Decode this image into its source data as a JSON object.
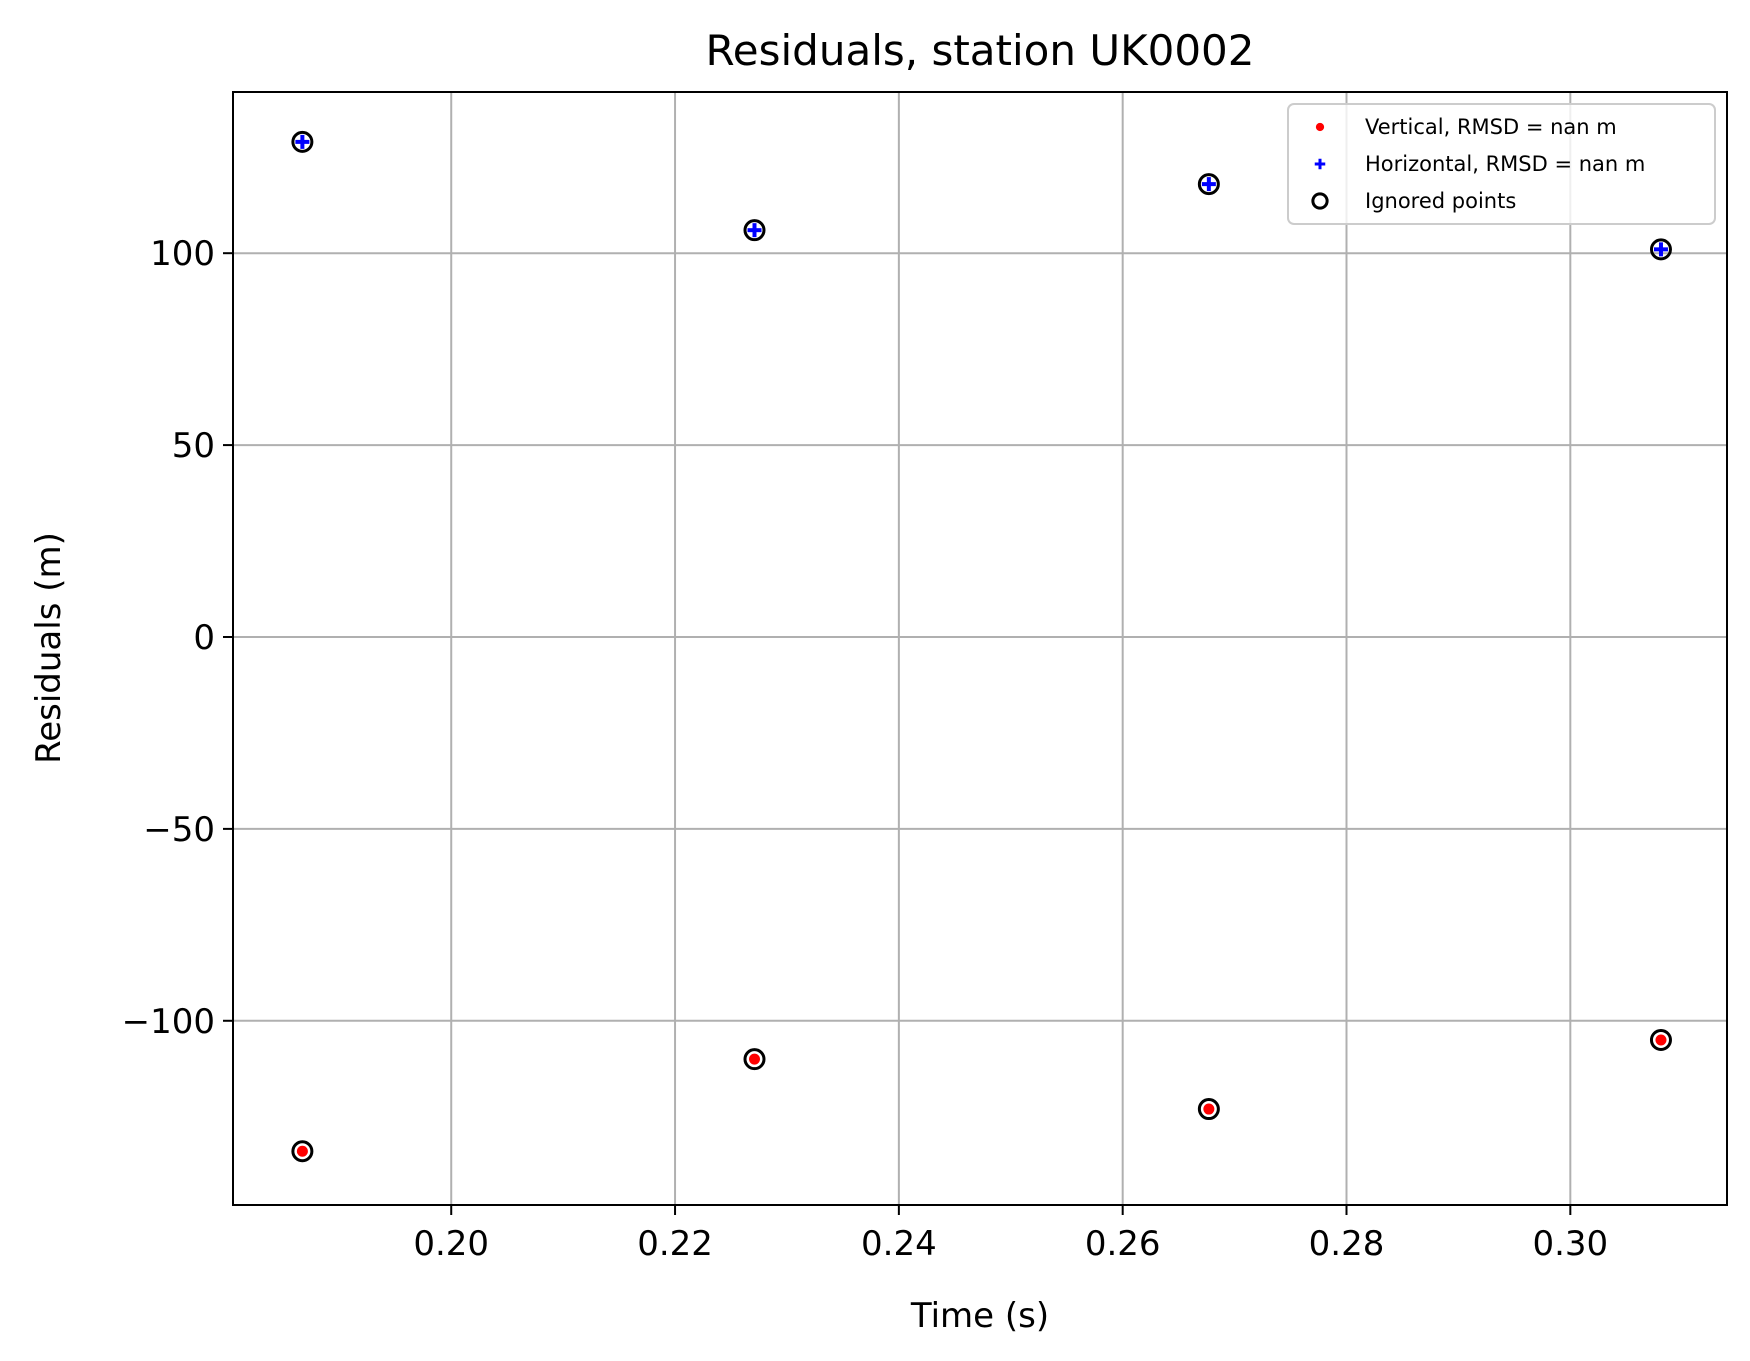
{
  "chart_data": {
    "type": "scatter",
    "title": "Residuals, station UK0002",
    "xlabel": "Time (s)",
    "ylabel": "Residuals (m)",
    "xlim": [
      0.1805,
      0.314
    ],
    "ylim": [
      -148,
      142
    ],
    "grid": true,
    "legend_position": "top-right",
    "x_ticks": [
      0.2,
      0.22,
      0.24,
      0.26,
      0.28,
      0.3
    ],
    "x_tick_labels": [
      "0.20",
      "0.22",
      "0.24",
      "0.26",
      "0.28",
      "0.30"
    ],
    "y_ticks": [
      100,
      50,
      0,
      -50,
      -100
    ],
    "y_tick_labels": [
      "100",
      "50",
      "0",
      "−50",
      "−100"
    ],
    "series": [
      {
        "name": "Vertical, RMSD = nan m",
        "marker": "dot",
        "color": "#ff0000",
        "x": [
          0.1867,
          0.2271,
          0.2677,
          0.3081
        ],
        "y": [
          -134,
          -110,
          -123,
          -105
        ]
      },
      {
        "name": "Horizontal, RMSD = nan m",
        "marker": "plus",
        "color": "#0000ff",
        "x": [
          0.1867,
          0.2271,
          0.2677,
          0.3081
        ],
        "y": [
          129,
          106,
          118,
          101
        ]
      },
      {
        "name": "Ignored points",
        "marker": "hollow-circle",
        "color": "#000000",
        "x": [
          0.1867,
          0.2271,
          0.2677,
          0.3081,
          0.1867,
          0.2271,
          0.2677,
          0.3081
        ],
        "y": [
          -134,
          -110,
          -123,
          -105,
          129,
          106,
          118,
          101
        ]
      }
    ]
  }
}
